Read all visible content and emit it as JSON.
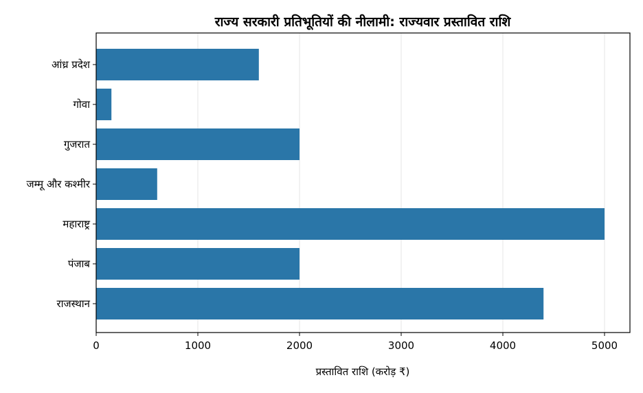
{
  "chart_data": {
    "type": "bar",
    "orientation": "horizontal",
    "title": "राज्य सरकारी प्रतिभूतियों की नीलामी: राज्यवार प्रस्तावित राशि",
    "xlabel": "प्रस्तावित राशि (करोड़ ₹)",
    "ylabel": "",
    "categories": [
      "आंध्र प्रदेश",
      "गोवा",
      "गुजरात",
      "जम्मू और कश्मीर",
      "महाराष्ट्र",
      "पंजाब",
      "राजस्थान"
    ],
    "values": [
      1600,
      150,
      2000,
      600,
      5000,
      2000,
      4400
    ],
    "xlim": [
      0,
      5250
    ],
    "xticks": [
      0,
      1000,
      2000,
      3000,
      4000,
      5000
    ],
    "grid": "vertical",
    "bar_color": "#2a76a8"
  }
}
